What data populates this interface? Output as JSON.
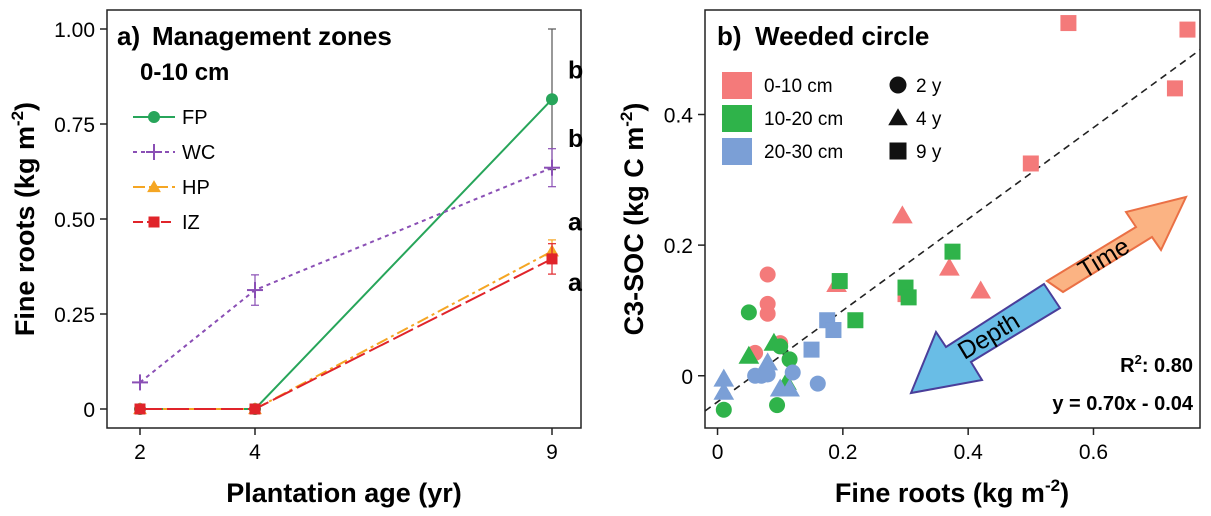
{
  "chart_data": [
    {
      "type": "line",
      "panel_label": "a)",
      "title": "Management zones",
      "subtitle": "0-10 cm",
      "xlabel": "Plantation age (yr)",
      "ylabel": "Fine roots (kg m",
      "ylabel_sup": "-2",
      "ylabel_end": ")",
      "x": [
        2,
        4,
        9
      ],
      "x_tick_labels": [
        "2",
        "4",
        "9"
      ],
      "ylim": [
        -0.05,
        1.05
      ],
      "y_ticks": [
        0,
        0.25,
        0.5,
        0.75,
        1.0
      ],
      "y_tick_labels": [
        "0",
        "0.25",
        "0.50",
        "0.75",
        "1.00"
      ],
      "legend_position": "center-left",
      "series": [
        {
          "name": "FP",
          "color": "#27a55a",
          "marker": "circle",
          "dash": "",
          "values": [
            0,
            0,
            0.815
          ],
          "errors": [
            0,
            0,
            0.185
          ]
        },
        {
          "name": "WC",
          "color": "#8a4fb5",
          "marker": "plus",
          "dash": "4 4",
          "values": [
            0.07,
            0.313,
            0.635
          ],
          "errors": [
            0,
            0.04,
            0.05
          ]
        },
        {
          "name": "HP",
          "color": "#f5a623",
          "marker": "triangle",
          "dash": "12 4 3 4",
          "values": [
            0,
            0,
            0.415
          ],
          "errors": [
            0,
            0,
            0.03
          ]
        },
        {
          "name": "IZ",
          "color": "#e0242a",
          "marker": "square",
          "dash": "22 5",
          "values": [
            0,
            0,
            0.395
          ],
          "errors": [
            0,
            0,
            0.04
          ]
        }
      ],
      "annotations": [
        {
          "text": "b",
          "x": 9,
          "y": 0.87
        },
        {
          "text": "b",
          "x": 9,
          "y": 0.69
        },
        {
          "text": "a",
          "x": 9,
          "y": 0.47
        },
        {
          "text": "a",
          "x": 9,
          "y": 0.31
        }
      ]
    },
    {
      "type": "scatter",
      "panel_label": "b)",
      "title": "Weeded circle",
      "title_color": "#7b3fa0",
      "xlabel": "Fine roots (kg m",
      "xlabel_sup": "-2",
      "xlabel_end": ")",
      "ylabel": "C3-SOC (kg C m",
      "ylabel_sup": "-2",
      "ylabel_end": ")",
      "xlim": [
        -0.02,
        0.77
      ],
      "ylim": [
        -0.08,
        0.56
      ],
      "x_ticks": [
        0,
        0.2,
        0.4,
        0.6
      ],
      "x_tick_labels": [
        "0",
        "0.2",
        "0.4",
        "0.6"
      ],
      "y_ticks": [
        0,
        0.2,
        0.4
      ],
      "y_tick_labels": [
        "0",
        "0.2",
        "0.4"
      ],
      "legend_position": "top-left",
      "depth_legend": [
        {
          "label": "0-10 cm",
          "color": "#f47a7a"
        },
        {
          "label": "10-20 cm",
          "color": "#2fb34a"
        },
        {
          "label": "20-30 cm",
          "color": "#7b9fd6"
        }
      ],
      "age_legend": [
        {
          "label": "2 y",
          "marker": "circle"
        },
        {
          "label": "4 y",
          "marker": "triangle"
        },
        {
          "label": "9 y",
          "marker": "square"
        }
      ],
      "fit_line": {
        "slope": 0.7,
        "intercept": -0.04,
        "x_range": [
          -0.02,
          0.77
        ]
      },
      "r2_label": "R",
      "r2_sup": "2",
      "r2_value": ": 0.80",
      "equation": "y = 0.70x - 0.04",
      "arrows": [
        {
          "label": "Time",
          "color": "#fbb383",
          "stroke": "#ea7045",
          "direction": "up-right"
        },
        {
          "label": "Depth",
          "color": "#69bde6",
          "stroke": "#4a3e9a",
          "direction": "down-left"
        }
      ],
      "points": [
        {
          "x": 0.56,
          "y": 0.54,
          "depth": 0,
          "age": "square"
        },
        {
          "x": 0.75,
          "y": 0.53,
          "depth": 0,
          "age": "square"
        },
        {
          "x": 0.73,
          "y": 0.44,
          "depth": 0,
          "age": "square"
        },
        {
          "x": 0.5,
          "y": 0.325,
          "depth": 0,
          "age": "square"
        },
        {
          "x": 0.3,
          "y": 0.125,
          "depth": 0,
          "age": "square"
        },
        {
          "x": 0.295,
          "y": 0.245,
          "depth": 0,
          "age": "triangle"
        },
        {
          "x": 0.37,
          "y": 0.165,
          "depth": 0,
          "age": "triangle"
        },
        {
          "x": 0.42,
          "y": 0.13,
          "depth": 0,
          "age": "triangle"
        },
        {
          "x": 0.19,
          "y": 0.14,
          "depth": 0,
          "age": "triangle"
        },
        {
          "x": 0.08,
          "y": 0.155,
          "depth": 0,
          "age": "circle"
        },
        {
          "x": 0.08,
          "y": 0.11,
          "depth": 0,
          "age": "circle"
        },
        {
          "x": 0.08,
          "y": 0.095,
          "depth": 0,
          "age": "circle"
        },
        {
          "x": 0.06,
          "y": 0.035,
          "depth": 0,
          "age": "circle"
        },
        {
          "x": 0.1,
          "y": 0.05,
          "depth": 0,
          "age": "circle"
        },
        {
          "x": 0.195,
          "y": 0.145,
          "depth": 1,
          "age": "square"
        },
        {
          "x": 0.22,
          "y": 0.085,
          "depth": 1,
          "age": "square"
        },
        {
          "x": 0.3,
          "y": 0.135,
          "depth": 1,
          "age": "square"
        },
        {
          "x": 0.305,
          "y": 0.12,
          "depth": 1,
          "age": "square"
        },
        {
          "x": 0.375,
          "y": 0.19,
          "depth": 1,
          "age": "square"
        },
        {
          "x": 0.05,
          "y": 0.03,
          "depth": 1,
          "age": "triangle"
        },
        {
          "x": 0.11,
          "y": -0.01,
          "depth": 1,
          "age": "triangle"
        },
        {
          "x": 0.09,
          "y": 0.05,
          "depth": 1,
          "age": "triangle"
        },
        {
          "x": 0.05,
          "y": 0.097,
          "depth": 1,
          "age": "circle"
        },
        {
          "x": 0.1,
          "y": 0.045,
          "depth": 1,
          "age": "circle"
        },
        {
          "x": 0.115,
          "y": 0.025,
          "depth": 1,
          "age": "circle"
        },
        {
          "x": 0.095,
          "y": -0.045,
          "depth": 1,
          "age": "circle"
        },
        {
          "x": 0.01,
          "y": -0.052,
          "depth": 1,
          "age": "circle"
        },
        {
          "x": 0.175,
          "y": 0.085,
          "depth": 2,
          "age": "square"
        },
        {
          "x": 0.185,
          "y": 0.07,
          "depth": 2,
          "age": "square"
        },
        {
          "x": 0.15,
          "y": 0.04,
          "depth": 2,
          "age": "square"
        },
        {
          "x": 0.01,
          "y": -0.005,
          "depth": 2,
          "age": "triangle"
        },
        {
          "x": 0.01,
          "y": -0.025,
          "depth": 2,
          "age": "triangle"
        },
        {
          "x": 0.08,
          "y": 0.02,
          "depth": 2,
          "age": "triangle"
        },
        {
          "x": 0.1,
          "y": -0.02,
          "depth": 2,
          "age": "triangle"
        },
        {
          "x": 0.115,
          "y": -0.02,
          "depth": 2,
          "age": "triangle"
        },
        {
          "x": 0.07,
          "y": 0.0,
          "depth": 2,
          "age": "circle"
        },
        {
          "x": 0.06,
          "y": 0.0,
          "depth": 2,
          "age": "circle"
        },
        {
          "x": 0.08,
          "y": 0.002,
          "depth": 2,
          "age": "circle"
        },
        {
          "x": 0.16,
          "y": -0.012,
          "depth": 2,
          "age": "circle"
        },
        {
          "x": 0.12,
          "y": 0.005,
          "depth": 2,
          "age": "circle"
        }
      ]
    }
  ]
}
